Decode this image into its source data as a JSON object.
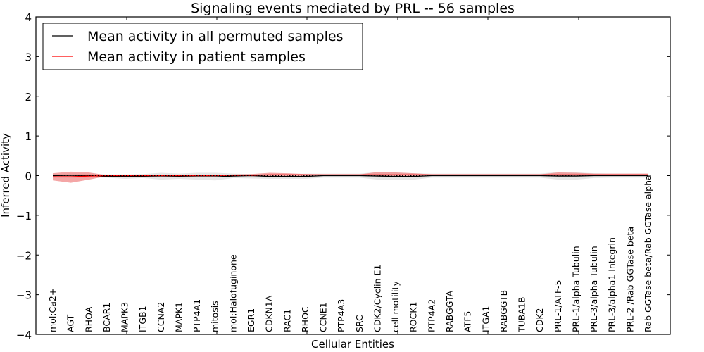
{
  "chart_data": {
    "type": "line",
    "title": "Signaling events mediated by PRL -- 56 samples",
    "xlabel": "Cellular Entities",
    "ylabel": "Inferred Activity",
    "ylim": [
      -4,
      4
    ],
    "yticks": [
      4,
      3,
      2,
      1,
      0,
      -1,
      -2,
      -3,
      -4
    ],
    "ytick_labels": [
      "4",
      "3",
      "2",
      "1",
      "0",
      "−1",
      "−2",
      "−3",
      "−4"
    ],
    "legend_position": "top-left",
    "grid": false,
    "categories": [
      "mol:Ca2+",
      "AGT",
      "RHOA",
      "BCAR1",
      "MAPK3",
      "ITGB1",
      "CCNA2",
      "MAPK1",
      "PTP4A1",
      "mitosis",
      "mol:Halofuginone",
      "EGR1",
      "CDKN1A",
      "RAC1",
      "RHOC",
      "CCNE1",
      "PTP4A3",
      "SRC",
      "CDK2/Cyclin E1",
      "cell motility",
      "ROCK1",
      "PTP4A2",
      "RABGGTA",
      "ATF5",
      "ITGA1",
      "RABGGTB",
      "TUBA1B",
      "CDK2",
      "PRL-1/ATF-5",
      "PRL-1/alpha Tubulin",
      "PRL-3/alpha Tubulin",
      "PRL-3/alpha1 Integrin",
      "PRL-2 /Rab GGTase beta",
      "Rab GGTase beta/Rab GGTase alpha"
    ],
    "series": [
      {
        "name": "Mean activity in all permuted samples",
        "color": "#000000",
        "values": [
          0,
          0.01,
          0,
          -0.02,
          -0.02,
          -0.02,
          -0.03,
          -0.02,
          -0.03,
          -0.03,
          -0.01,
          0,
          -0.02,
          -0.02,
          -0.02,
          0,
          0,
          0,
          -0.01,
          -0.02,
          -0.02,
          0,
          0,
          0,
          0,
          0,
          0,
          0,
          -0.01,
          -0.01,
          0,
          0,
          0,
          0
        ],
        "band_lower": [
          -0.06,
          -0.06,
          -0.05,
          -0.05,
          -0.08,
          -0.06,
          -0.1,
          -0.08,
          -0.1,
          -0.12,
          -0.06,
          -0.07,
          -0.08,
          -0.08,
          -0.08,
          -0.05,
          -0.05,
          -0.05,
          -0.1,
          -0.11,
          -0.1,
          -0.05,
          -0.05,
          -0.05,
          -0.05,
          -0.05,
          -0.05,
          -0.05,
          -0.1,
          -0.1,
          -0.06,
          -0.05,
          -0.05,
          -0.05
        ],
        "band_upper": [
          0.04,
          0.06,
          0.05,
          0.03,
          0.03,
          0.04,
          0.07,
          0.05,
          0.07,
          0.07,
          0.05,
          0.04,
          0.04,
          0.04,
          0.05,
          0.05,
          0.05,
          0.05,
          0.09,
          0.08,
          0.06,
          0.05,
          0.05,
          0.05,
          0.05,
          0.05,
          0.05,
          0.05,
          0.09,
          0.08,
          0.06,
          0.05,
          0.05,
          0.05
        ],
        "band_color": "#dddddd"
      },
      {
        "name": "Mean activity in patient samples",
        "color": "#ff0000",
        "values": [
          -0.03,
          -0.03,
          -0.01,
          0,
          0,
          0,
          0,
          0,
          0,
          0,
          0.01,
          0.01,
          0.02,
          0.02,
          0.02,
          0.02,
          0.02,
          0.02,
          0.02,
          0.02,
          0.02,
          0.02,
          0.02,
          0.02,
          0.02,
          0.02,
          0.02,
          0.02,
          0.02,
          0.02,
          0.02,
          0.02,
          0.02,
          0.02
        ],
        "band_lower": [
          -0.12,
          -0.18,
          -0.1,
          -0.01,
          -0.01,
          -0.01,
          -0.01,
          -0.01,
          -0.01,
          -0.01,
          -0.01,
          -0.01,
          -0.02,
          -0.02,
          -0.01,
          0,
          0,
          0,
          -0.02,
          -0.02,
          -0.01,
          0.01,
          0.01,
          0.01,
          0.01,
          0.01,
          0.01,
          0.01,
          -0.01,
          -0.01,
          0.01,
          0.01,
          0.01,
          0.01
        ],
        "band_upper": [
          0.06,
          0.1,
          0.08,
          0.01,
          0.01,
          0.01,
          0.01,
          0.01,
          0.01,
          0.01,
          0.03,
          0.04,
          0.07,
          0.06,
          0.04,
          0.03,
          0.03,
          0.03,
          0.09,
          0.08,
          0.06,
          0.03,
          0.03,
          0.03,
          0.03,
          0.03,
          0.03,
          0.03,
          0.08,
          0.07,
          0.05,
          0.05,
          0.05,
          0.05
        ],
        "band_color": "#f08080"
      }
    ],
    "reference_line": {
      "value": 0,
      "style": "dotted",
      "color": "#000000"
    }
  }
}
